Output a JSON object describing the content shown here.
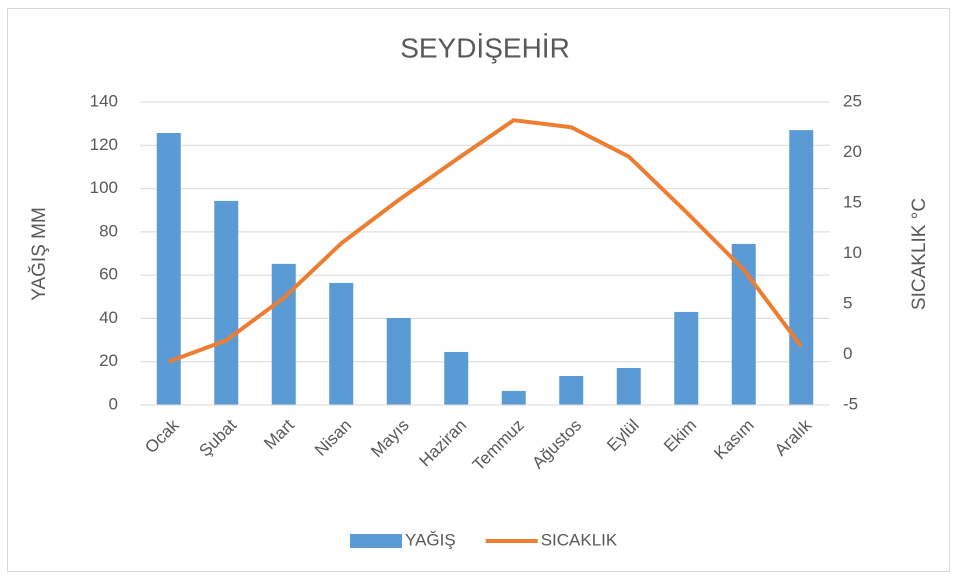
{
  "chart_data": {
    "type": "bar_line",
    "title": "SEYDİŞEHİR",
    "categories": [
      "Ocak",
      "Şubat",
      "Mart",
      "Nisan",
      "Mayıs",
      "Haziran",
      "Temmuz",
      "Ağustos",
      "Eylül",
      "Ekim",
      "Kasım",
      "Aralık"
    ],
    "series": [
      {
        "name": "YAĞIŞ",
        "color": "#5b9bd5",
        "type": "bar",
        "axis": "y",
        "values": [
          125.7,
          94.3,
          65.2,
          56.4,
          40.2,
          24.5,
          6.5,
          13.4,
          17.1,
          43,
          74.4,
          127
        ]
      },
      {
        "name": "SICAKLIK",
        "color": "#ed7d31",
        "type": "line",
        "axis": "y2",
        "values": [
          -0.7,
          1.4,
          5.6,
          11,
          15.3,
          19.3,
          23.2,
          22.5,
          19.6,
          14.1,
          8.4,
          0.8
        ]
      }
    ],
    "ylabel": "YAĞIŞ MM",
    "y2label": "SICAKLIK °C",
    "ylim": [
      0,
      140
    ],
    "yticks": [
      0,
      20,
      40,
      60,
      80,
      100,
      120,
      140
    ],
    "y2lim": [
      -5,
      25
    ],
    "y2ticks": [
      -5,
      0,
      5,
      10,
      15,
      20,
      25
    ],
    "legend": "bottom"
  }
}
